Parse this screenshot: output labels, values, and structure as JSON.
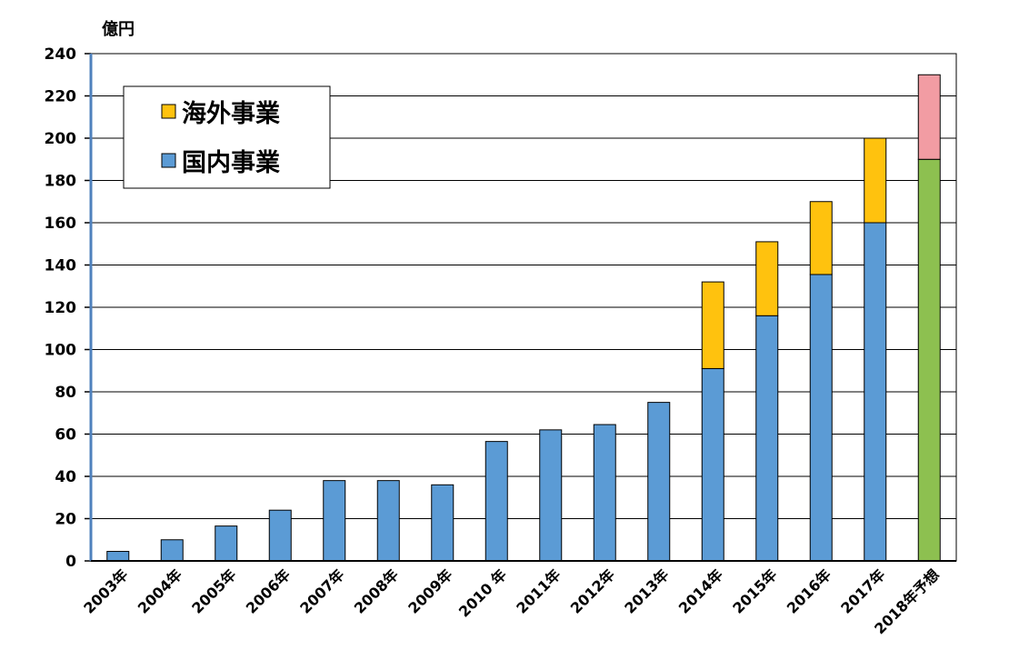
{
  "chart_data": {
    "type": "bar",
    "stacked": true,
    "unit_label": "億円",
    "ylim": [
      0,
      240
    ],
    "yticks": [
      0,
      20,
      40,
      60,
      80,
      100,
      120,
      140,
      160,
      180,
      200,
      220,
      240
    ],
    "grid": true,
    "legend_placement": "top-left",
    "categories": [
      "2003年",
      "2004年",
      "2005年",
      "2006年",
      "2007年",
      "2008年",
      "2009年",
      "2010 年",
      "2011年",
      "2012年",
      "2013年",
      "2014年",
      "2015年",
      "2016年",
      "2017年",
      "2018年予想"
    ],
    "series": [
      {
        "name": "国内事業",
        "color": "#5B9BD5",
        "values": [
          4.5,
          10,
          16.5,
          24,
          38,
          38,
          36,
          56.5,
          62,
          64.5,
          75,
          91,
          116,
          135.5,
          160,
          190
        ],
        "last_color": "#8DC050"
      },
      {
        "name": "海外事業",
        "color": "#FFC20E",
        "values": [
          0,
          0,
          0,
          0,
          0,
          0,
          0,
          0,
          0,
          0,
          0,
          41,
          35,
          34.5,
          40,
          40
        ],
        "last_color": "#F29CA3"
      }
    ],
    "legend": [
      {
        "name": "海外事業",
        "color": "#FFC20E"
      },
      {
        "name": "国内事業",
        "color": "#5B9BD5"
      }
    ]
  }
}
